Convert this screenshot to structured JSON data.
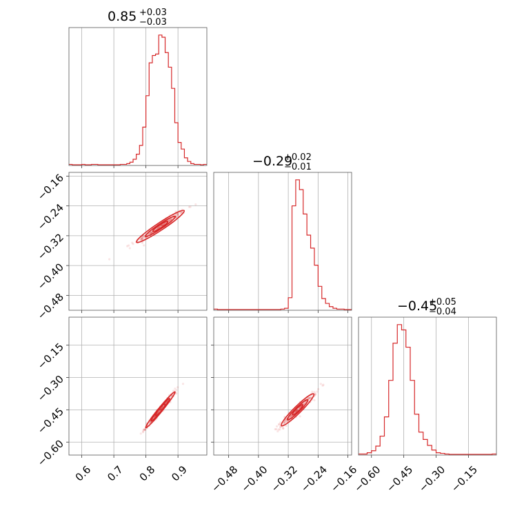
{
  "chart_data": {
    "type": "corner",
    "colors": {
      "main": "#d62728",
      "grid": "#b0b0b0",
      "frame": "#555555"
    },
    "grid": true,
    "parameters": [
      {
        "id": "p0",
        "median": 0.85,
        "title_main": "0.85",
        "title_plus": "+0.03",
        "title_minus": "−0.03",
        "range": [
          0.56,
          0.99
        ],
        "ticks": [
          0.6,
          0.7,
          0.8,
          0.9
        ],
        "tick_labels": [
          "0.6",
          "0.7",
          "0.8",
          "0.9"
        ]
      },
      {
        "id": "p1",
        "median": -0.29,
        "title_main": "−0.29",
        "title_plus": "+0.02",
        "title_minus": "−0.01",
        "range": [
          -0.52,
          -0.15
        ],
        "ticks": [
          -0.48,
          -0.4,
          -0.32,
          -0.24,
          -0.16
        ],
        "tick_labels": [
          "−0.48",
          "−0.40",
          "−0.32",
          "−0.24",
          "−0.16"
        ]
      },
      {
        "id": "p2",
        "median": -0.45,
        "title_main": "−0.45",
        "title_plus": "+0.05",
        "title_minus": "−0.04",
        "range": [
          -0.66,
          -0.02
        ],
        "ticks": [
          -0.6,
          -0.45,
          -0.3,
          -0.15
        ],
        "tick_labels": [
          "−0.60",
          "−0.45",
          "−0.30",
          "−0.15"
        ]
      }
    ],
    "histograms": [
      {
        "param": 0,
        "bins": [
          0.56,
          0.57,
          0.58,
          0.59,
          0.6,
          0.61,
          0.62,
          0.63,
          0.64,
          0.65,
          0.66,
          0.67,
          0.68,
          0.69,
          0.7,
          0.71,
          0.72,
          0.73,
          0.74,
          0.75,
          0.76,
          0.77,
          0.78,
          0.79,
          0.8,
          0.81,
          0.82,
          0.83,
          0.84,
          0.85,
          0.86,
          0.87,
          0.88,
          0.89,
          0.9,
          0.91,
          0.92,
          0.93,
          0.94,
          0.95,
          0.96,
          0.97,
          0.98,
          0.99
        ],
        "counts": [
          1,
          0,
          0,
          0,
          1,
          0,
          0,
          1,
          1,
          0,
          0,
          0,
          0,
          0,
          0,
          0,
          1,
          1,
          2,
          4,
          8,
          15,
          27,
          52,
          95,
          140,
          150,
          152,
          178,
          175,
          154,
          134,
          105,
          58,
          31,
          22,
          10,
          5,
          2,
          1,
          1,
          0,
          1
        ]
      },
      {
        "param": 1,
        "bins": [
          -0.52,
          -0.51,
          -0.5,
          -0.49,
          -0.48,
          -0.47,
          -0.46,
          -0.45,
          -0.44,
          -0.43,
          -0.42,
          -0.41,
          -0.4,
          -0.39,
          -0.38,
          -0.37,
          -0.36,
          -0.35,
          -0.34,
          -0.33,
          -0.32,
          -0.31,
          -0.3,
          -0.29,
          -0.28,
          -0.27,
          -0.26,
          -0.25,
          -0.24,
          -0.23,
          -0.22,
          -0.21,
          -0.2,
          -0.19,
          -0.18,
          -0.17,
          -0.16,
          -0.15
        ],
        "counts": [
          1,
          0,
          0,
          0,
          0,
          0,
          0,
          0,
          0,
          0,
          0,
          0,
          0,
          0,
          0,
          0,
          0,
          0,
          1,
          2,
          15,
          128,
          160,
          148,
          118,
          92,
          76,
          55,
          29,
          14,
          8,
          4,
          2,
          1,
          1,
          0,
          0
        ]
      },
      {
        "param": 2,
        "bins": [
          -0.66,
          -0.64,
          -0.62,
          -0.6,
          -0.58,
          -0.56,
          -0.54,
          -0.52,
          -0.5,
          -0.48,
          -0.46,
          -0.44,
          -0.42,
          -0.4,
          -0.38,
          -0.36,
          -0.34,
          -0.32,
          -0.3,
          -0.28,
          -0.26,
          -0.24,
          -0.22,
          -0.2,
          -0.18,
          -0.16,
          -0.14,
          -0.12,
          -0.1,
          -0.08,
          -0.06,
          -0.04,
          -0.02
        ],
        "counts": [
          1,
          1,
          3,
          6,
          13,
          28,
          57,
          112,
          168,
          196,
          188,
          162,
          112,
          61,
          34,
          23,
          14,
          7,
          3,
          2,
          1,
          0,
          0,
          0,
          0,
          0,
          0,
          0,
          0,
          0,
          0,
          1
        ]
      }
    ],
    "joint": [
      {
        "x_param": 0,
        "y_param": 1,
        "center": [
          0.845,
          -0.295
        ],
        "slope": 0.57,
        "sd_major": 0.045,
        "sd_minor_frac": 0.1
      },
      {
        "x_param": 0,
        "y_param": 2,
        "center": [
          0.845,
          -0.45
        ],
        "slope": 1.82,
        "sd_major": 0.05,
        "sd_minor_frac": 0.07
      },
      {
        "x_param": 1,
        "y_param": 2,
        "center": [
          -0.295,
          -0.45
        ],
        "slope": 1.7,
        "sd_major": 0.045,
        "sd_minor_frac": 0.12
      }
    ]
  }
}
